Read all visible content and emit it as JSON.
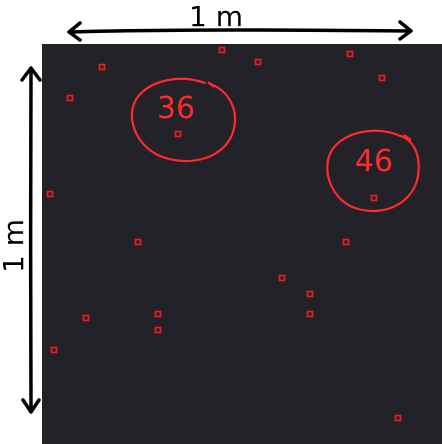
{
  "colors": {
    "background": "#ffffff",
    "field": "#222228",
    "point": "#ff1a1a",
    "annotation": "#ff2a2a",
    "dimension": "#000000"
  },
  "dimensions": {
    "width_label": "1 m",
    "height_label": "1 m"
  },
  "annotations": [
    {
      "label": "36"
    },
    {
      "label": "46"
    }
  ],
  "point_count": 19
}
